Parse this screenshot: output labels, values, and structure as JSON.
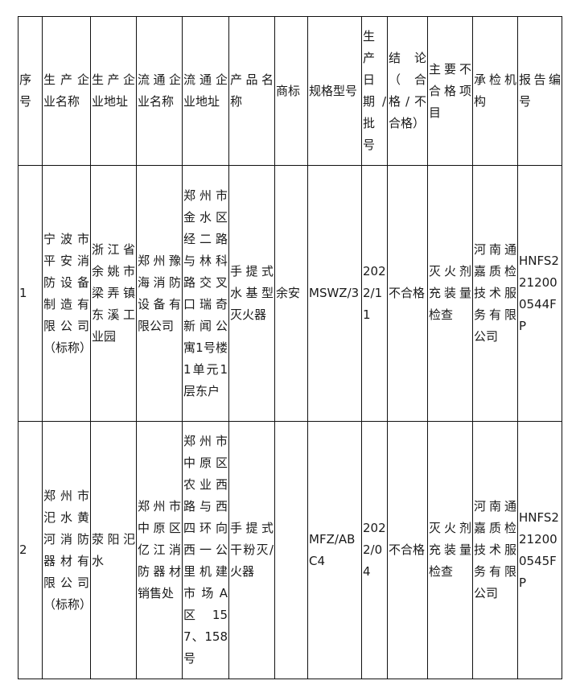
{
  "table": {
    "headers": [
      "序号",
      "生产企业名称",
      "生产企业地址",
      "流通企业名称",
      "流通企业地址",
      "产品名称",
      "商标",
      "规格型号",
      "生产日期/批号",
      "结论（合格/不合格）",
      "主要不合格项目",
      "承检机构",
      "报告编号"
    ],
    "rows": [
      [
        "1",
        "宁波市平安消防设备制造有限公司（标称）",
        "浙江省余姚市梁弄镇东溪工业园",
        "郑州豫海消防设备有限公司",
        "郑州市金水区经二路与林科路交叉口瑞奇新闻公寓1号楼1单元1层东户",
        "手提式水基型灭火器",
        "余安",
        "MSWZ/3",
        "2022/11",
        "不合格",
        "灭火剂充装量检查",
        "河南通嘉质检技术服务有限公司",
        "HNFS2212000544FP"
      ],
      [
        "2",
        "郑州市汜水黄河消防器材有限公司（标称）",
        "荥阳汜水",
        "郑州市中原区亿江消防器材销售处",
        "郑州市中原区农业西路与西四环向西一公里机建市场A区157、158号",
        "手提式干粉灭/火器",
        "",
        "MFZ/ABC4",
        "2022/04",
        "不合格",
        "灭火剂充装量检查",
        "河南通嘉质检技术服务有限公司",
        "HNFS2212000545FP"
      ]
    ]
  }
}
